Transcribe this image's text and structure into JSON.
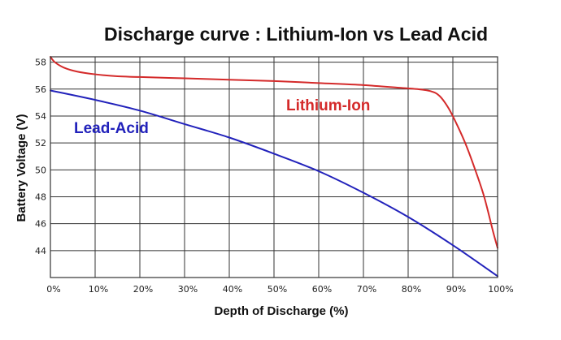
{
  "chart_data": {
    "type": "line",
    "title": "Discharge curve : Lithium-Ion vs Lead Acid",
    "xlabel": "Depth of Discharge (%)",
    "ylabel": "Battery Voltage (V)",
    "xlim": [
      0,
      100
    ],
    "ylim": [
      42,
      58.4
    ],
    "grid": true,
    "x_ticks": [
      0,
      10,
      20,
      30,
      40,
      50,
      60,
      70,
      80,
      90,
      100
    ],
    "x_tick_labels": [
      "0%",
      "10%",
      "20%",
      "30%",
      "40%",
      "50%",
      "60%",
      "70%",
      "80%",
      "90%",
      "100%"
    ],
    "y_ticks": [
      44,
      46,
      48,
      50,
      52,
      54,
      56,
      58
    ],
    "y_tick_labels": [
      "44",
      "46",
      "48",
      "50",
      "52",
      "54",
      "56",
      "58"
    ],
    "series": [
      {
        "name": "Lithium-Ion",
        "label": "Lithium-Ion",
        "color": "#d42a2a",
        "x": [
          0,
          1,
          3,
          6,
          10,
          15,
          20,
          30,
          40,
          50,
          60,
          70,
          78,
          82,
          85,
          87,
          89,
          91,
          93,
          95,
          97,
          99,
          100
        ],
        "y": [
          58.4,
          58.0,
          57.6,
          57.3,
          57.1,
          56.95,
          56.9,
          56.8,
          56.7,
          56.6,
          56.45,
          56.3,
          56.1,
          56.0,
          55.85,
          55.5,
          54.6,
          53.3,
          51.8,
          50.0,
          48.0,
          45.4,
          44.2
        ]
      },
      {
        "name": "Lead-Acid",
        "label": "Lead-Acid",
        "color": "#2222bb",
        "x": [
          0,
          10,
          20,
          30,
          40,
          50,
          60,
          70,
          80,
          90,
          100
        ],
        "y": [
          55.9,
          55.2,
          54.4,
          53.4,
          52.4,
          51.2,
          49.9,
          48.3,
          46.5,
          44.4,
          42.1
        ]
      }
    ]
  }
}
